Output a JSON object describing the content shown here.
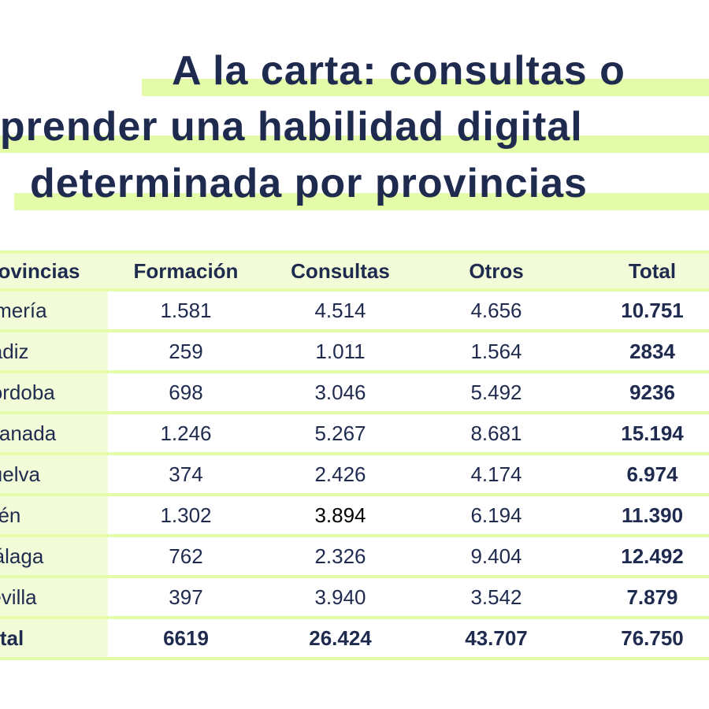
{
  "title": {
    "lines": [
      "A la carta: consultas o",
      "aprender una habilidad digital",
      "determinada por provincias"
    ]
  },
  "colors": {
    "text": "#1f2a4f",
    "highlight": "#e4fbaa",
    "cell_bg": "#f3fcd9"
  },
  "table": {
    "headers": [
      "Provincias",
      "Formación",
      "Consultas",
      "Otros",
      "Total"
    ],
    "rows": [
      [
        "Almería",
        "1.581",
        "4.514",
        "4.656",
        "10.751"
      ],
      [
        "Cádiz",
        "259",
        "1.011",
        "1.564",
        "2834"
      ],
      [
        "Córdoba",
        "698",
        "3.046",
        "5.492",
        "9236"
      ],
      [
        "Granada",
        "1.246",
        "5.267",
        "8.681",
        "15.194"
      ],
      [
        "Huelva",
        "374",
        "2.426",
        "4.174",
        "6.974"
      ],
      [
        "Jaén",
        "1.302",
        "3.894",
        "6.194",
        "11.390"
      ],
      [
        "Málaga",
        "762",
        "2.326",
        "9.404",
        "12.492"
      ],
      [
        "Sevilla",
        "397",
        "3.940",
        "3.542",
        "7.879"
      ]
    ],
    "total": [
      "Total",
      "6619",
      "26.424",
      "43.707",
      "76.750"
    ]
  }
}
